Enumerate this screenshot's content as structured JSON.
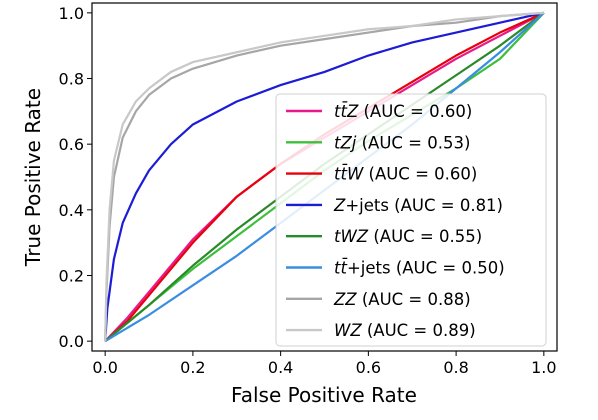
{
  "chart_data": {
    "type": "line",
    "xlabel": "False Positive Rate",
    "ylabel": "True Positive Rate",
    "xlim": [
      -0.03,
      1.03
    ],
    "ylim": [
      -0.03,
      1.03
    ],
    "xticks": [
      "0.0",
      "0.2",
      "0.4",
      "0.6",
      "0.8",
      "1.0"
    ],
    "yticks": [
      "0.0",
      "0.2",
      "0.4",
      "0.6",
      "0.8",
      "1.0"
    ],
    "grid": false,
    "legend_position": "lower-right",
    "series": [
      {
        "name": "tt̄Z (AUC = 0.60)",
        "legend_main": "tt̄Z",
        "legend_rest": " (AUC = 0.60)",
        "color": "#e8198b",
        "x": [
          0,
          0.05,
          0.1,
          0.2,
          0.3,
          0.4,
          0.5,
          0.6,
          0.7,
          0.8,
          0.9,
          1.0
        ],
        "y": [
          0,
          0.07,
          0.15,
          0.31,
          0.44,
          0.54,
          0.62,
          0.7,
          0.78,
          0.86,
          0.93,
          1.0
        ]
      },
      {
        "name": "tZj (AUC = 0.53)",
        "legend_main": "tZj",
        "legend_rest": " (AUC = 0.53)",
        "color": "#3cc03c",
        "x": [
          0,
          0.1,
          0.2,
          0.3,
          0.4,
          0.5,
          0.6,
          0.7,
          0.8,
          0.9,
          1.0
        ],
        "y": [
          0,
          0.11,
          0.22,
          0.32,
          0.42,
          0.52,
          0.61,
          0.69,
          0.77,
          0.86,
          1.0
        ]
      },
      {
        "name": "tt̄W (AUC = 0.60)",
        "legend_main": "tt̄W",
        "legend_rest": " (AUC = 0.60)",
        "color": "#e8000b",
        "x": [
          0,
          0.05,
          0.1,
          0.2,
          0.3,
          0.4,
          0.5,
          0.6,
          0.7,
          0.8,
          0.9,
          1.0
        ],
        "y": [
          0,
          0.06,
          0.14,
          0.3,
          0.44,
          0.54,
          0.63,
          0.71,
          0.79,
          0.87,
          0.94,
          1.0
        ]
      },
      {
        "name": "Z+jets (AUC = 0.81)",
        "legend_main": "Z",
        "legend_rest": "+jets (AUC = 0.81)",
        "color": "#1c1cd6",
        "x": [
          0,
          0.005,
          0.02,
          0.04,
          0.07,
          0.1,
          0.15,
          0.2,
          0.3,
          0.4,
          0.5,
          0.6,
          0.7,
          0.8,
          0.9,
          1.0
        ],
        "y": [
          0,
          0.1,
          0.25,
          0.36,
          0.45,
          0.52,
          0.6,
          0.66,
          0.73,
          0.78,
          0.82,
          0.87,
          0.91,
          0.94,
          0.97,
          1.0
        ]
      },
      {
        "name": "tWZ (AUC = 0.55)",
        "legend_main": "tWZ",
        "legend_rest": " (AUC = 0.55)",
        "color": "#2a8a2a",
        "x": [
          0,
          0.1,
          0.2,
          0.3,
          0.4,
          0.5,
          0.6,
          0.7,
          0.8,
          0.9,
          1.0
        ],
        "y": [
          0,
          0.11,
          0.23,
          0.34,
          0.44,
          0.54,
          0.63,
          0.72,
          0.81,
          0.9,
          1.0
        ]
      },
      {
        "name": "tt̄+jets (AUC = 0.50)",
        "legend_main": "tt̄",
        "legend_rest": "+jets (AUC = 0.50)",
        "color": "#3a8de0",
        "x": [
          0,
          0.1,
          0.2,
          0.3,
          0.4,
          0.5,
          0.6,
          0.7,
          0.8,
          0.9,
          1.0
        ],
        "y": [
          0,
          0.08,
          0.17,
          0.26,
          0.36,
          0.46,
          0.56,
          0.66,
          0.77,
          0.88,
          1.0
        ]
      },
      {
        "name": "ZZ (AUC = 0.88)",
        "legend_main": "ZZ",
        "legend_rest": " (AUC = 0.88)",
        "color": "#a6a6a6",
        "x": [
          0,
          0.003,
          0.01,
          0.02,
          0.04,
          0.07,
          0.1,
          0.15,
          0.2,
          0.3,
          0.4,
          0.5,
          0.6,
          0.7,
          0.8,
          0.9,
          1.0
        ],
        "y": [
          0,
          0.15,
          0.35,
          0.5,
          0.62,
          0.7,
          0.75,
          0.8,
          0.83,
          0.87,
          0.9,
          0.92,
          0.94,
          0.96,
          0.97,
          0.99,
          1.0
        ]
      },
      {
        "name": "WZ (AUC = 0.89)",
        "legend_main": "WZ",
        "legend_rest": " (AUC = 0.89)",
        "color": "#c8c8c8",
        "x": [
          0,
          0.003,
          0.01,
          0.02,
          0.04,
          0.07,
          0.1,
          0.15,
          0.2,
          0.3,
          0.4,
          0.5,
          0.6,
          0.7,
          0.8,
          0.9,
          1.0
        ],
        "y": [
          0,
          0.18,
          0.4,
          0.55,
          0.66,
          0.73,
          0.77,
          0.82,
          0.85,
          0.88,
          0.91,
          0.93,
          0.95,
          0.96,
          0.98,
          0.99,
          1.0
        ]
      }
    ]
  }
}
